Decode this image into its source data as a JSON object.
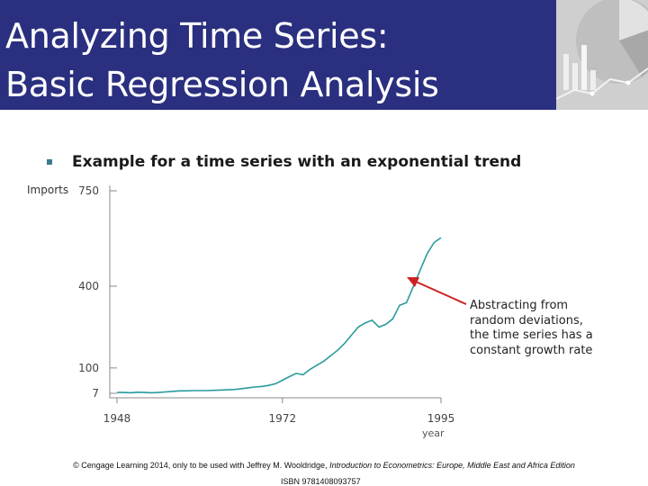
{
  "slide": {
    "title_line1": "Analyzing Time Series:",
    "title_line2": "Basic Regression Analysis",
    "bullet": "Example for a time series with an exponential trend",
    "annotation": "Abstracting from random deviations, the time series has a constant growth rate",
    "footer_prefix": "© Cengage Learning 2014, only to be used with Jeffrey M. Wooldridge,",
    "footer_book": "Introduction to Econometrics: Europe, Middle East and Africa Edition",
    "footer_isbn": "ISBN 9781408093757"
  },
  "colors": {
    "title_bg": "#2a2f7f",
    "series": "#2a9a9c",
    "arrow": "#cc2222",
    "axis": "#888888"
  },
  "chart_data": {
    "type": "line",
    "ylabel": "Imports",
    "xlabel": "year",
    "x_ticks": [
      1948,
      1972,
      1995
    ],
    "y_ticks": [
      7,
      100,
      400,
      750
    ],
    "xlim": [
      1948,
      1995
    ],
    "ylim": [
      7,
      750
    ],
    "series": [
      {
        "x": [
          1948,
          1949,
          1950,
          1951,
          1952,
          1953,
          1954,
          1955,
          1956,
          1957,
          1958,
          1959,
          1960,
          1961,
          1962,
          1963,
          1964,
          1965,
          1966,
          1967,
          1968,
          1969,
          1970,
          1971,
          1972,
          1973,
          1974,
          1975,
          1976,
          1977,
          1978,
          1979,
          1980,
          1981,
          1982,
          1983,
          1984,
          1985,
          1986,
          1987,
          1988,
          1989,
          1990,
          1991,
          1992,
          1993,
          1994,
          1995
        ],
        "y": [
          10,
          10,
          9,
          11,
          10,
          9,
          10,
          12,
          14,
          16,
          16,
          17,
          17,
          17,
          18,
          19,
          20,
          21,
          24,
          27,
          30,
          32,
          36,
          42,
          55,
          68,
          80,
          75,
          95,
          110,
          125,
          145,
          165,
          190,
          220,
          250,
          265,
          275,
          250,
          260,
          280,
          330,
          340,
          400,
          460,
          520,
          560,
          578
        ]
      }
    ]
  }
}
